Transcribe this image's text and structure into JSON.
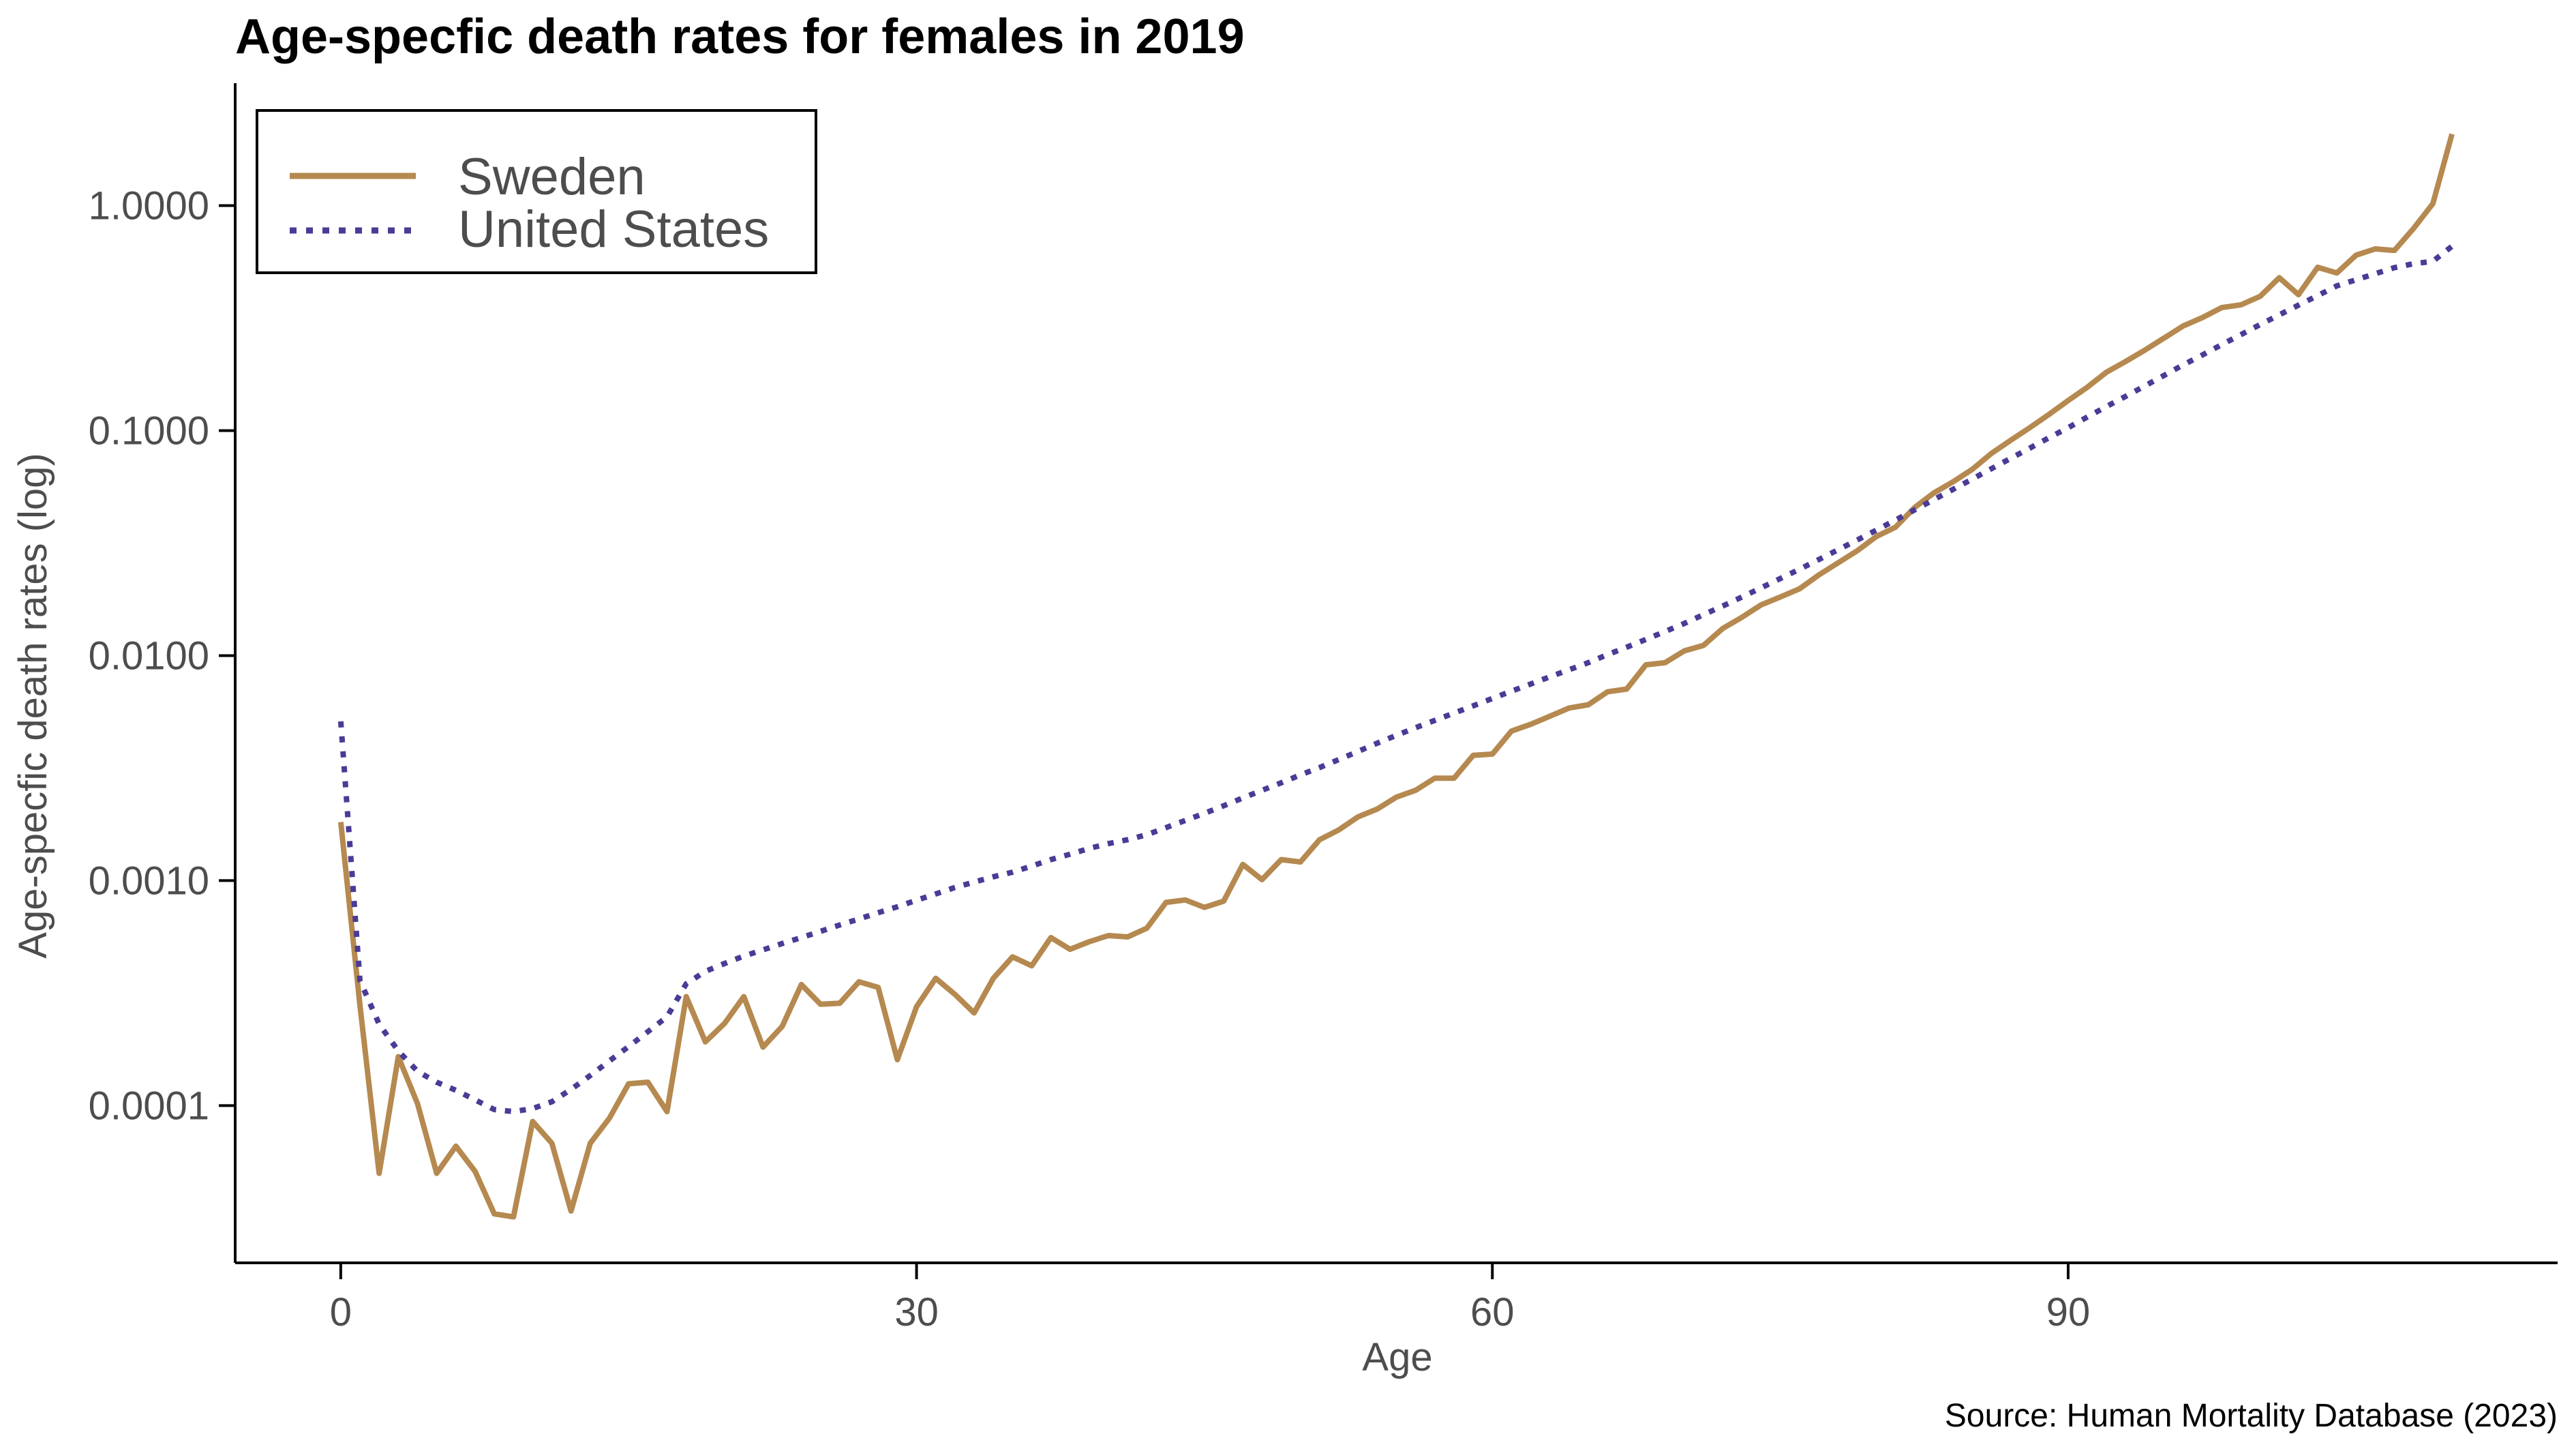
{
  "chart_data": {
    "type": "line",
    "title": "Age-specfic death rates for females in 2019",
    "xlabel": "Age",
    "ylabel": "Age-specfic death rates (log)",
    "caption": "Source: Human Mortality Database (2023)",
    "x_scale": "linear",
    "y_scale": "log",
    "xlim": [
      -5.5,
      115.5
    ],
    "ylim": [
      2e-05,
      3.5
    ],
    "x_ticks": [
      0,
      30,
      60,
      90
    ],
    "x_tick_labels": [
      "0",
      "30",
      "60",
      "90"
    ],
    "y_ticks": [
      0.0001,
      0.001,
      0.01,
      0.1,
      1
    ],
    "y_tick_labels": [
      "0.0001",
      "0.0010",
      "0.0100",
      "0.1000",
      "1.0000"
    ],
    "grid": false,
    "legend_position": "top-left",
    "x": [
      0,
      1,
      2,
      3,
      4,
      5,
      6,
      7,
      8,
      9,
      10,
      11,
      12,
      13,
      14,
      15,
      16,
      17,
      18,
      19,
      20,
      21,
      22,
      23,
      24,
      25,
      26,
      27,
      28,
      29,
      30,
      31,
      32,
      33,
      34,
      35,
      36,
      37,
      38,
      39,
      40,
      41,
      42,
      43,
      44,
      45,
      46,
      47,
      48,
      49,
      50,
      51,
      52,
      53,
      54,
      55,
      56,
      57,
      58,
      59,
      60,
      61,
      62,
      63,
      64,
      65,
      66,
      67,
      68,
      69,
      70,
      71,
      72,
      73,
      74,
      75,
      76,
      77,
      78,
      79,
      80,
      81,
      82,
      83,
      84,
      85,
      86,
      87,
      88,
      89,
      90,
      91,
      92,
      93,
      94,
      95,
      96,
      97,
      98,
      99,
      100,
      101,
      102,
      103,
      104,
      105,
      106,
      107,
      108,
      109,
      110
    ],
    "series": [
      {
        "name": "Sweden",
        "color": "#b5894f",
        "style": "solid",
        "values": [
          0.00182,
          0.00028,
          5e-05,
          0.000165,
          0.000102,
          5e-05,
          6.6e-05,
          5.1e-05,
          3.3e-05,
          3.2e-05,
          8.5e-05,
          6.8e-05,
          3.4e-05,
          6.8e-05,
          8.8e-05,
          0.000125,
          0.000127,
          9.4e-05,
          0.000305,
          0.000192,
          0.000232,
          0.000305,
          0.000182,
          0.000225,
          0.000345,
          0.000282,
          0.000285,
          0.000355,
          0.000335,
          0.00016,
          0.000275,
          0.000368,
          0.000312,
          0.000258,
          0.000368,
          0.000458,
          0.000418,
          0.000558,
          0.000495,
          0.000535,
          0.00057,
          0.000562,
          0.000615,
          0.0008,
          0.00082,
          0.00076,
          0.00081,
          0.00118,
          0.00101,
          0.00124,
          0.00121,
          0.00152,
          0.00168,
          0.00192,
          0.00208,
          0.00235,
          0.00252,
          0.00285,
          0.00285,
          0.0036,
          0.00365,
          0.00462,
          0.00495,
          0.00538,
          0.00585,
          0.00605,
          0.0069,
          0.0071,
          0.0091,
          0.0093,
          0.0105,
          0.0111,
          0.0132,
          0.0148,
          0.0168,
          0.0182,
          0.0198,
          0.0228,
          0.0258,
          0.0292,
          0.0338,
          0.0372,
          0.0455,
          0.0528,
          0.0592,
          0.0672,
          0.0792,
          0.0905,
          0.103,
          0.118,
          0.136,
          0.156,
          0.182,
          0.203,
          0.228,
          0.258,
          0.292,
          0.318,
          0.352,
          0.362,
          0.395,
          0.478,
          0.402,
          0.532,
          0.502,
          0.602,
          0.642,
          0.632,
          0.792,
          1.02,
          2.08
        ]
      },
      {
        "name": "United States",
        "color": "#4b3b96",
        "style": "dotted",
        "values": [
          0.0051,
          0.00036,
          0.00023,
          0.000175,
          0.000142,
          0.000127,
          0.000117,
          0.000106,
          9.6e-05,
          9.4e-05,
          9.7e-05,
          0.000104,
          0.000118,
          0.000136,
          0.000158,
          0.000183,
          0.000213,
          0.000248,
          0.000348,
          0.000395,
          0.000428,
          0.000462,
          0.000492,
          0.000525,
          0.000558,
          0.000595,
          0.000635,
          0.000675,
          0.00072,
          0.000765,
          0.000818,
          0.000872,
          0.000932,
          0.000985,
          0.00104,
          0.00109,
          0.00116,
          0.00124,
          0.00131,
          0.00139,
          0.00146,
          0.00152,
          0.0016,
          0.00172,
          0.00185,
          0.00199,
          0.00215,
          0.00233,
          0.00252,
          0.00272,
          0.00295,
          0.00318,
          0.00345,
          0.00375,
          0.00408,
          0.00442,
          0.00478,
          0.00515,
          0.00555,
          0.00598,
          0.00645,
          0.00695,
          0.00748,
          0.00805,
          0.00865,
          0.0093,
          0.0101,
          0.0109,
          0.0118,
          0.0128,
          0.0139,
          0.0152,
          0.0166,
          0.0182,
          0.02,
          0.022,
          0.0242,
          0.0267,
          0.0295,
          0.0326,
          0.0361,
          0.04,
          0.0444,
          0.0493,
          0.0548,
          0.0609,
          0.0677,
          0.0752,
          0.0836,
          0.0929,
          0.103,
          0.115,
          0.128,
          0.142,
          0.158,
          0.176,
          0.196,
          0.217,
          0.241,
          0.267,
          0.296,
          0.327,
          0.361,
          0.398,
          0.44,
          0.468,
          0.498,
          0.53,
          0.552,
          0.565,
          0.66
        ]
      }
    ]
  }
}
